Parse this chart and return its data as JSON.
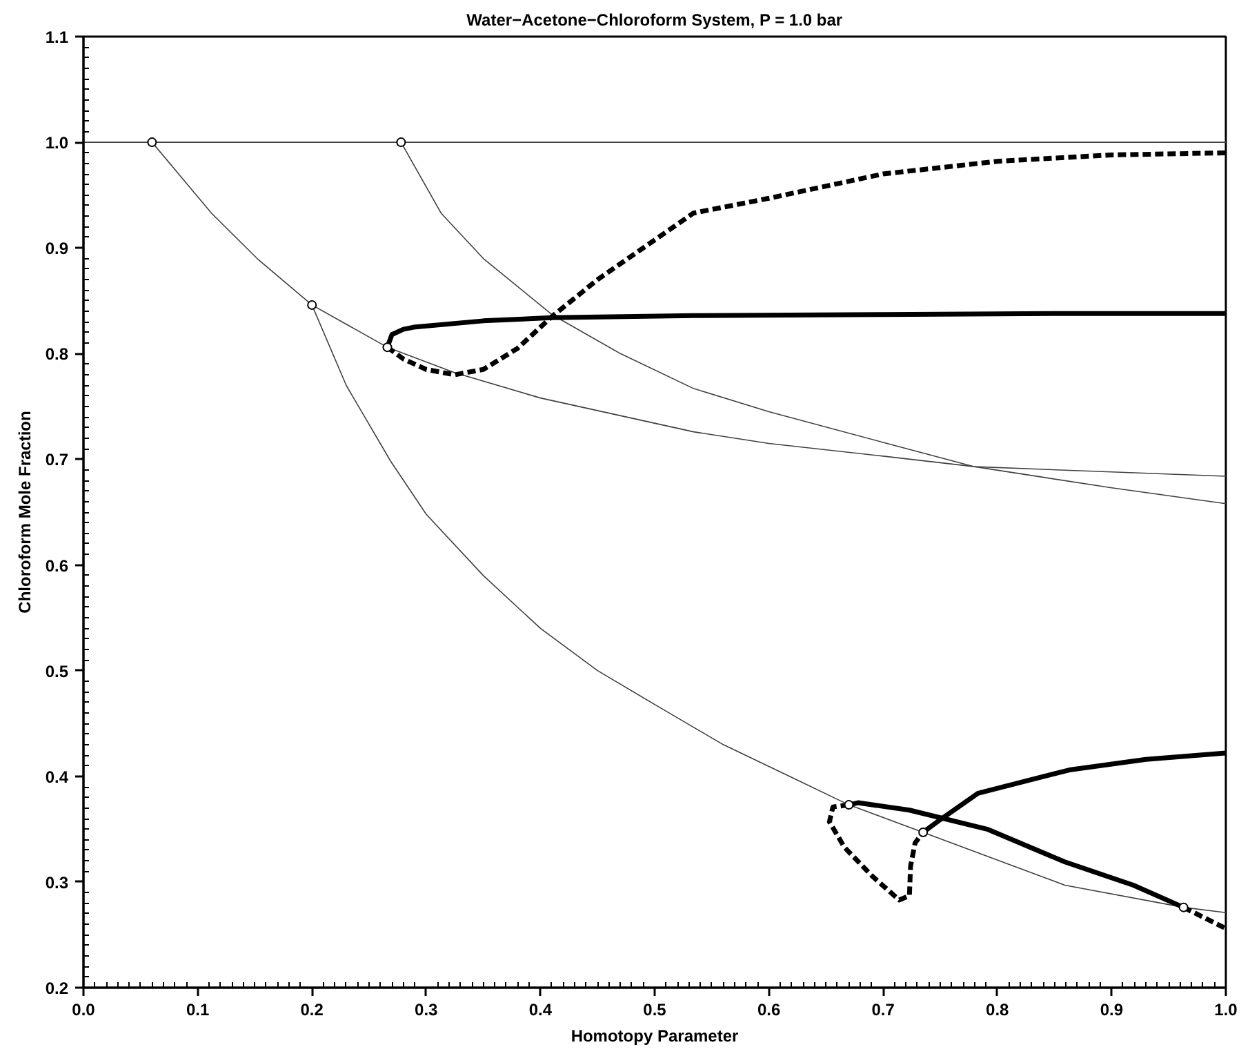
{
  "chart_data": {
    "type": "line",
    "title": "Water−Acetone−Chloroform System, P = 1.0 bar",
    "xlabel": "Homotopy Parameter",
    "ylabel": "Chloroform Mole Fraction",
    "xlim": [
      0.0,
      1.0
    ],
    "ylim": [
      0.2,
      1.1
    ],
    "xticks": [
      {
        "value": 0,
        "label": "0.0"
      },
      0.1,
      0.2,
      0.3,
      0.4,
      0.5,
      0.6,
      0.7,
      0.8,
      0.9,
      {
        "value": 1,
        "label": "1.0"
      }
    ],
    "yticks": [
      0.2,
      0.3,
      0.4,
      0.5,
      0.6,
      0.7,
      0.8,
      0.9,
      {
        "value": 1,
        "label": "1.0"
      },
      1.1
    ],
    "grid": false,
    "marker": "none",
    "series": [
      {
        "color": "#404040",
        "line_style": "solid",
        "x": [
          0,
          1
        ],
        "values": [
          1,
          1
        ]
      },
      {
        "color": "#404040",
        "line_style": "solid",
        "x": [
          0.06,
          0.112,
          0.152,
          0.2,
          0.266,
          0.325,
          0.4,
          0.534,
          0.6,
          0.7,
          0.78,
          0.9,
          1.0
        ],
        "values": [
          1.0,
          0.933,
          0.89,
          0.846,
          0.806,
          0.782,
          0.758,
          0.726,
          0.715,
          0.703,
          0.693,
          0.688,
          0.684
        ]
      },
      {
        "color": "#404040",
        "line_style": "solid",
        "x": [
          0.278,
          0.313,
          0.35,
          0.41,
          0.47,
          0.534,
          0.6,
          0.7,
          0.78,
          0.9,
          1.0
        ],
        "values": [
          1.0,
          0.933,
          0.89,
          0.837,
          0.8,
          0.767,
          0.745,
          0.716,
          0.693,
          0.673,
          0.658
        ]
      },
      {
        "color": "#404040",
        "line_style": "solid",
        "x": [
          0.2,
          0.23,
          0.269,
          0.3,
          0.35,
          0.4,
          0.45,
          0.5,
          0.56,
          0.618,
          0.67,
          0.735,
          0.859,
          0.963,
          1.0
        ],
        "values": [
          0.846,
          0.77,
          0.698,
          0.648,
          0.59,
          0.54,
          0.5,
          0.468,
          0.43,
          0.4,
          0.373,
          0.347,
          0.297,
          0.276,
          0.271
        ]
      },
      {
        "color": "#000000",
        "line_style": "solid",
        "x": [
          0.266,
          0.27,
          0.28,
          0.289,
          0.35,
          0.41,
          0.534,
          0.7,
          0.85,
          1.0
        ],
        "values": [
          0.806,
          0.818,
          0.823,
          0.825,
          0.831,
          0.834,
          0.836,
          0.837,
          0.838,
          0.838
        ]
      },
      {
        "color": "#000000",
        "line_style": "dashed",
        "x": [
          0.266,
          0.28,
          0.3,
          0.325,
          0.35,
          0.38,
          0.41,
          0.45,
          0.534,
          0.6,
          0.7,
          0.8,
          0.9,
          1.0
        ],
        "values": [
          0.806,
          0.795,
          0.785,
          0.78,
          0.785,
          0.805,
          0.835,
          0.87,
          0.933,
          0.947,
          0.97,
          0.982,
          0.988,
          0.99
        ]
      },
      {
        "color": "#000000",
        "line_style": "solid",
        "x": [
          0.67,
          0.678,
          0.723,
          0.791,
          0.859,
          0.919,
          0.963
        ],
        "values": [
          0.373,
          0.375,
          0.368,
          0.35,
          0.319,
          0.297,
          0.276
        ]
      },
      {
        "color": "#000000",
        "line_style": "solid",
        "x": [
          0.735,
          0.75,
          0.783,
          0.863,
          0.93,
          1.0
        ],
        "values": [
          0.347,
          0.359,
          0.384,
          0.406,
          0.416,
          0.422
        ]
      },
      {
        "color": "#000000",
        "line_style": "dashed",
        "x": [
          0.67,
          0.656,
          0.653,
          0.666,
          0.69,
          0.714,
          0.723,
          0.724,
          0.728,
          0.735
        ],
        "values": [
          0.373,
          0.371,
          0.357,
          0.333,
          0.306,
          0.283,
          0.287,
          0.315,
          0.337,
          0.347
        ]
      },
      {
        "color": "#000000",
        "line_style": "dashed",
        "x": [
          0.963,
          1.0
        ],
        "values": [
          0.276,
          0.256
        ]
      },
      {
        "type": "scatter",
        "marker": "circle",
        "color": "#000000",
        "x": [
          0.06,
          0.278,
          0.2,
          0.266,
          0.67,
          0.735,
          0.963
        ],
        "values": [
          1.0,
          1.0,
          0.846,
          0.806,
          0.373,
          0.347,
          0.276
        ]
      }
    ]
  }
}
